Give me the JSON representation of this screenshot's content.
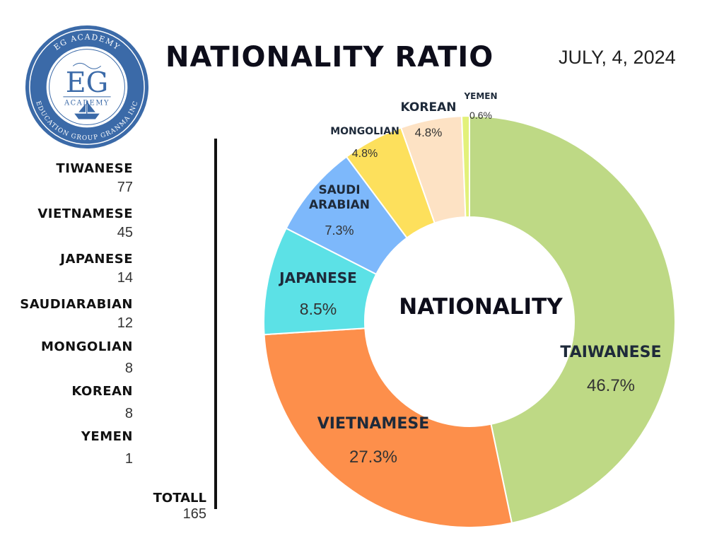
{
  "header": {
    "title": "NATIONALITY RATIO",
    "date": "JULY, 4, 2024"
  },
  "logo": {
    "ring_top": "EG ACADEMY",
    "ring_bottom": "EDUCATION GROUP GRANMA INC",
    "monogram": "EG",
    "subtitle": "ACADEMY",
    "color": "#3b6aa8"
  },
  "legend": {
    "items": [
      {
        "name": "TIWANESE",
        "value": "77"
      },
      {
        "name": "VIETNAMESE",
        "value": "45"
      },
      {
        "name": "JAPANESE",
        "value": "14"
      },
      {
        "name": "SAUDIARABIAN",
        "value": "12"
      },
      {
        "name": "MONGOLIAN",
        "value": "8"
      },
      {
        "name": "KOREAN",
        "value": "8"
      },
      {
        "name": "YEMEN",
        "value": "1"
      }
    ],
    "total_label": "TOTALL",
    "total_value": "165"
  },
  "chart_data": {
    "type": "pie",
    "center_label": "NATIONALITY",
    "slices": [
      {
        "label": [
          "TAIWANESE"
        ],
        "percent_text": "46.7%",
        "value": 46.7,
        "color": "#bed985"
      },
      {
        "label": [
          "VIETNAMESE"
        ],
        "percent_text": "27.3%",
        "value": 27.3,
        "color": "#fd8f4b"
      },
      {
        "label": [
          "JAPANESE"
        ],
        "percent_text": "8.5%",
        "value": 8.5,
        "color": "#5ce1e6"
      },
      {
        "label": [
          "SAUDI",
          "ARABIAN"
        ],
        "percent_text": "7.3%",
        "value": 7.3,
        "color": "#7db8fb"
      },
      {
        "label": [
          "MONGOLIAN"
        ],
        "percent_text": "4.8%",
        "value": 4.8,
        "color": "#fde05c"
      },
      {
        "label": [
          "KOREAN"
        ],
        "percent_text": "4.8%",
        "value": 4.8,
        "color": "#fde2c4"
      },
      {
        "label": [
          "YEMEN"
        ],
        "percent_text": "0.6%",
        "value": 0.6,
        "color": "#e3f17a"
      }
    ]
  }
}
